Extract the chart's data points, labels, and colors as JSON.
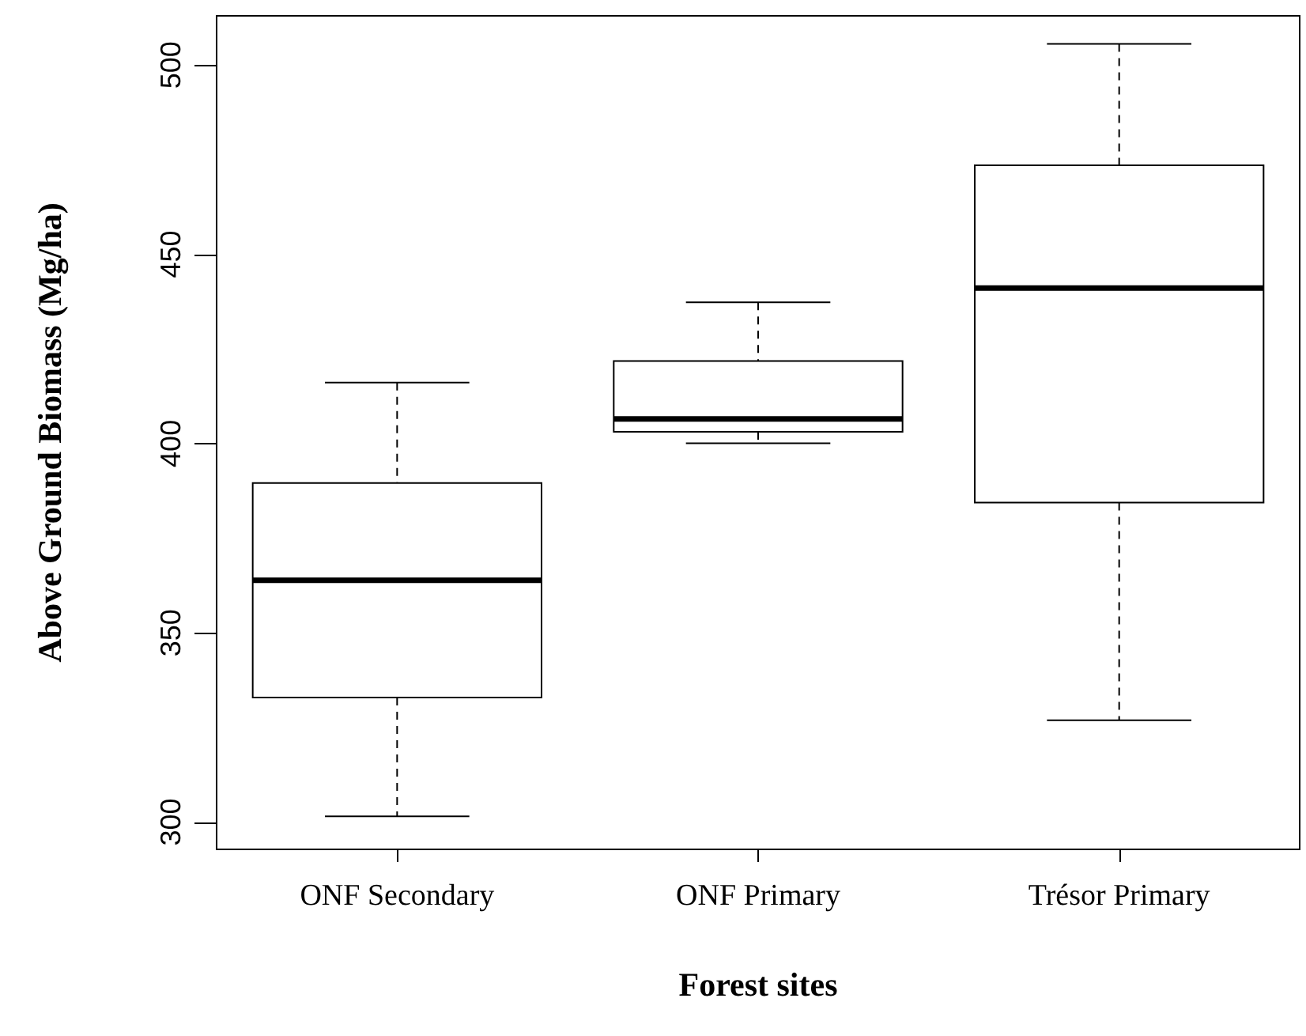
{
  "chart_data": {
    "type": "box",
    "xlabel": "Forest sites",
    "ylabel": "Above Ground Biomass (Mg/ha)",
    "categories": [
      "ONF Secondary",
      "ONF Primary",
      "Trésor Primary"
    ],
    "boxes": [
      {
        "low": 301.5,
        "q1": 332.9,
        "median": 363.9,
        "q3": 389.6,
        "high": 416.1
      },
      {
        "low": 400.1,
        "q1": 403.1,
        "median": 406.5,
        "q3": 421.8,
        "high": 437.3
      },
      {
        "low": 326.9,
        "q1": 384.4,
        "median": 441.1,
        "q3": 473.5,
        "high": 505.6
      }
    ],
    "color": "#000000",
    "ylim": [
      292.8,
      513
    ],
    "yticks": [
      300,
      350,
      400,
      450,
      500
    ]
  }
}
